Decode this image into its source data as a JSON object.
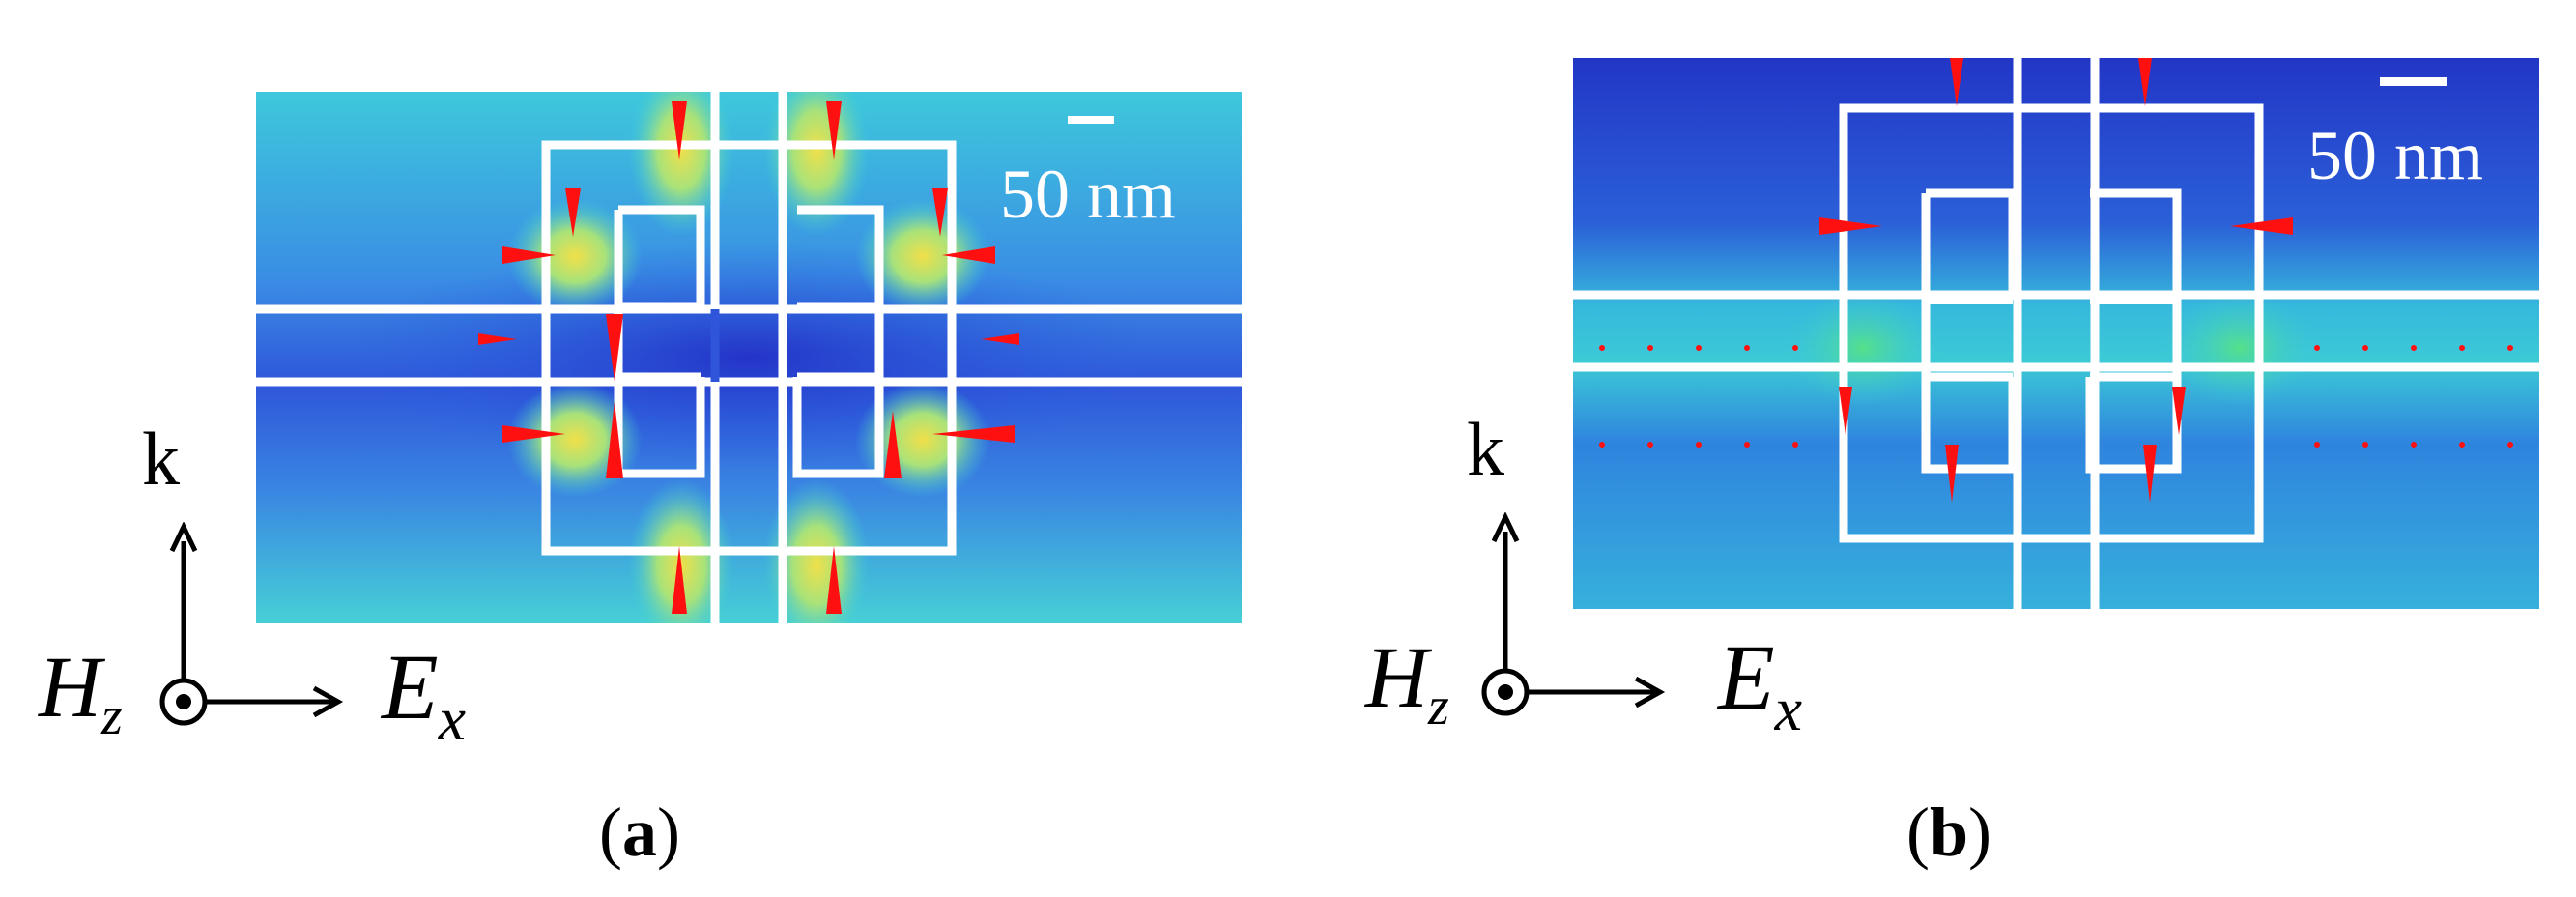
{
  "panels": [
    {
      "id": "a",
      "scale_bar_label": "50 nm",
      "axis_k": "k",
      "axis_h_base": "H",
      "axis_h_sub": "z",
      "axis_e_base": "E",
      "axis_e_sub": "x",
      "caption_letter": "a"
    },
    {
      "id": "b",
      "scale_bar_label": "50 nm",
      "axis_k": "k",
      "axis_h_base": "H",
      "axis_h_sub": "z",
      "axis_e_base": "E",
      "axis_e_sub": "x",
      "caption_letter": "b"
    }
  ],
  "colors": {
    "outline": "#ffffff",
    "vectors": "#ff1010",
    "field_low": "#2a40d8",
    "field_mid": "#2fd6d0",
    "field_high": "#e8e050",
    "axis": "#000000"
  }
}
